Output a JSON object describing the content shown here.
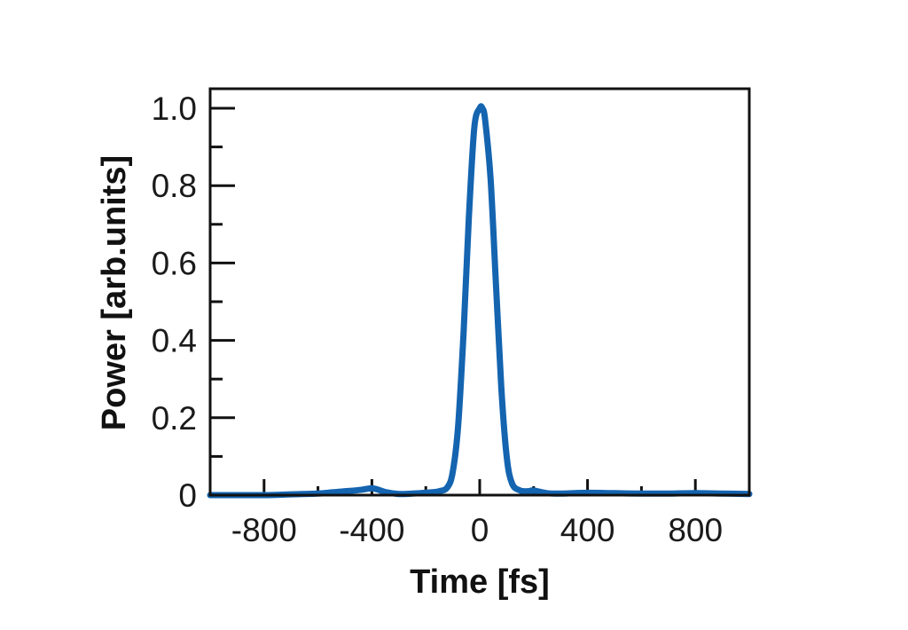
{
  "chart_data": {
    "type": "line",
    "title": "",
    "xlabel": "Time [fs]",
    "ylabel": "Power [arb.units]",
    "xlim": [
      -1000,
      1000
    ],
    "ylim": [
      0,
      1.05
    ],
    "x_ticks": [
      -800,
      -400,
      0,
      400,
      800
    ],
    "x_tick_labels": [
      "-800",
      "-400",
      "0",
      "400",
      "800"
    ],
    "y_ticks": [
      0,
      0.2,
      0.4,
      0.6,
      0.8,
      1.0
    ],
    "y_tick_labels": [
      "0",
      "0.2",
      "0.4",
      "0.6",
      "0.8",
      "1.0"
    ],
    "grid": false,
    "line_color": "#1464b0",
    "series": [
      {
        "x": [
          -1000,
          -900,
          -800,
          -700,
          -600,
          -550,
          -500,
          -450,
          -420,
          -400,
          -380,
          -350,
          -300,
          -250,
          -200,
          -150,
          -120,
          -100,
          -80,
          -60,
          -40,
          -20,
          0,
          10,
          20,
          40,
          60,
          80,
          100,
          120,
          150,
          180,
          200,
          250,
          300,
          400,
          500,
          600,
          700,
          800,
          900,
          1000
        ],
        "y": [
          0.0,
          0.0,
          0.0,
          0.002,
          0.004,
          0.007,
          0.01,
          0.013,
          0.016,
          0.018,
          0.015,
          0.008,
          0.003,
          0.004,
          0.006,
          0.01,
          0.02,
          0.06,
          0.18,
          0.42,
          0.72,
          0.95,
          1.0,
          1.0,
          0.97,
          0.82,
          0.55,
          0.28,
          0.1,
          0.03,
          0.012,
          0.01,
          0.012,
          0.005,
          0.004,
          0.006,
          0.005,
          0.004,
          0.004,
          0.005,
          0.004,
          0.003
        ]
      }
    ]
  }
}
